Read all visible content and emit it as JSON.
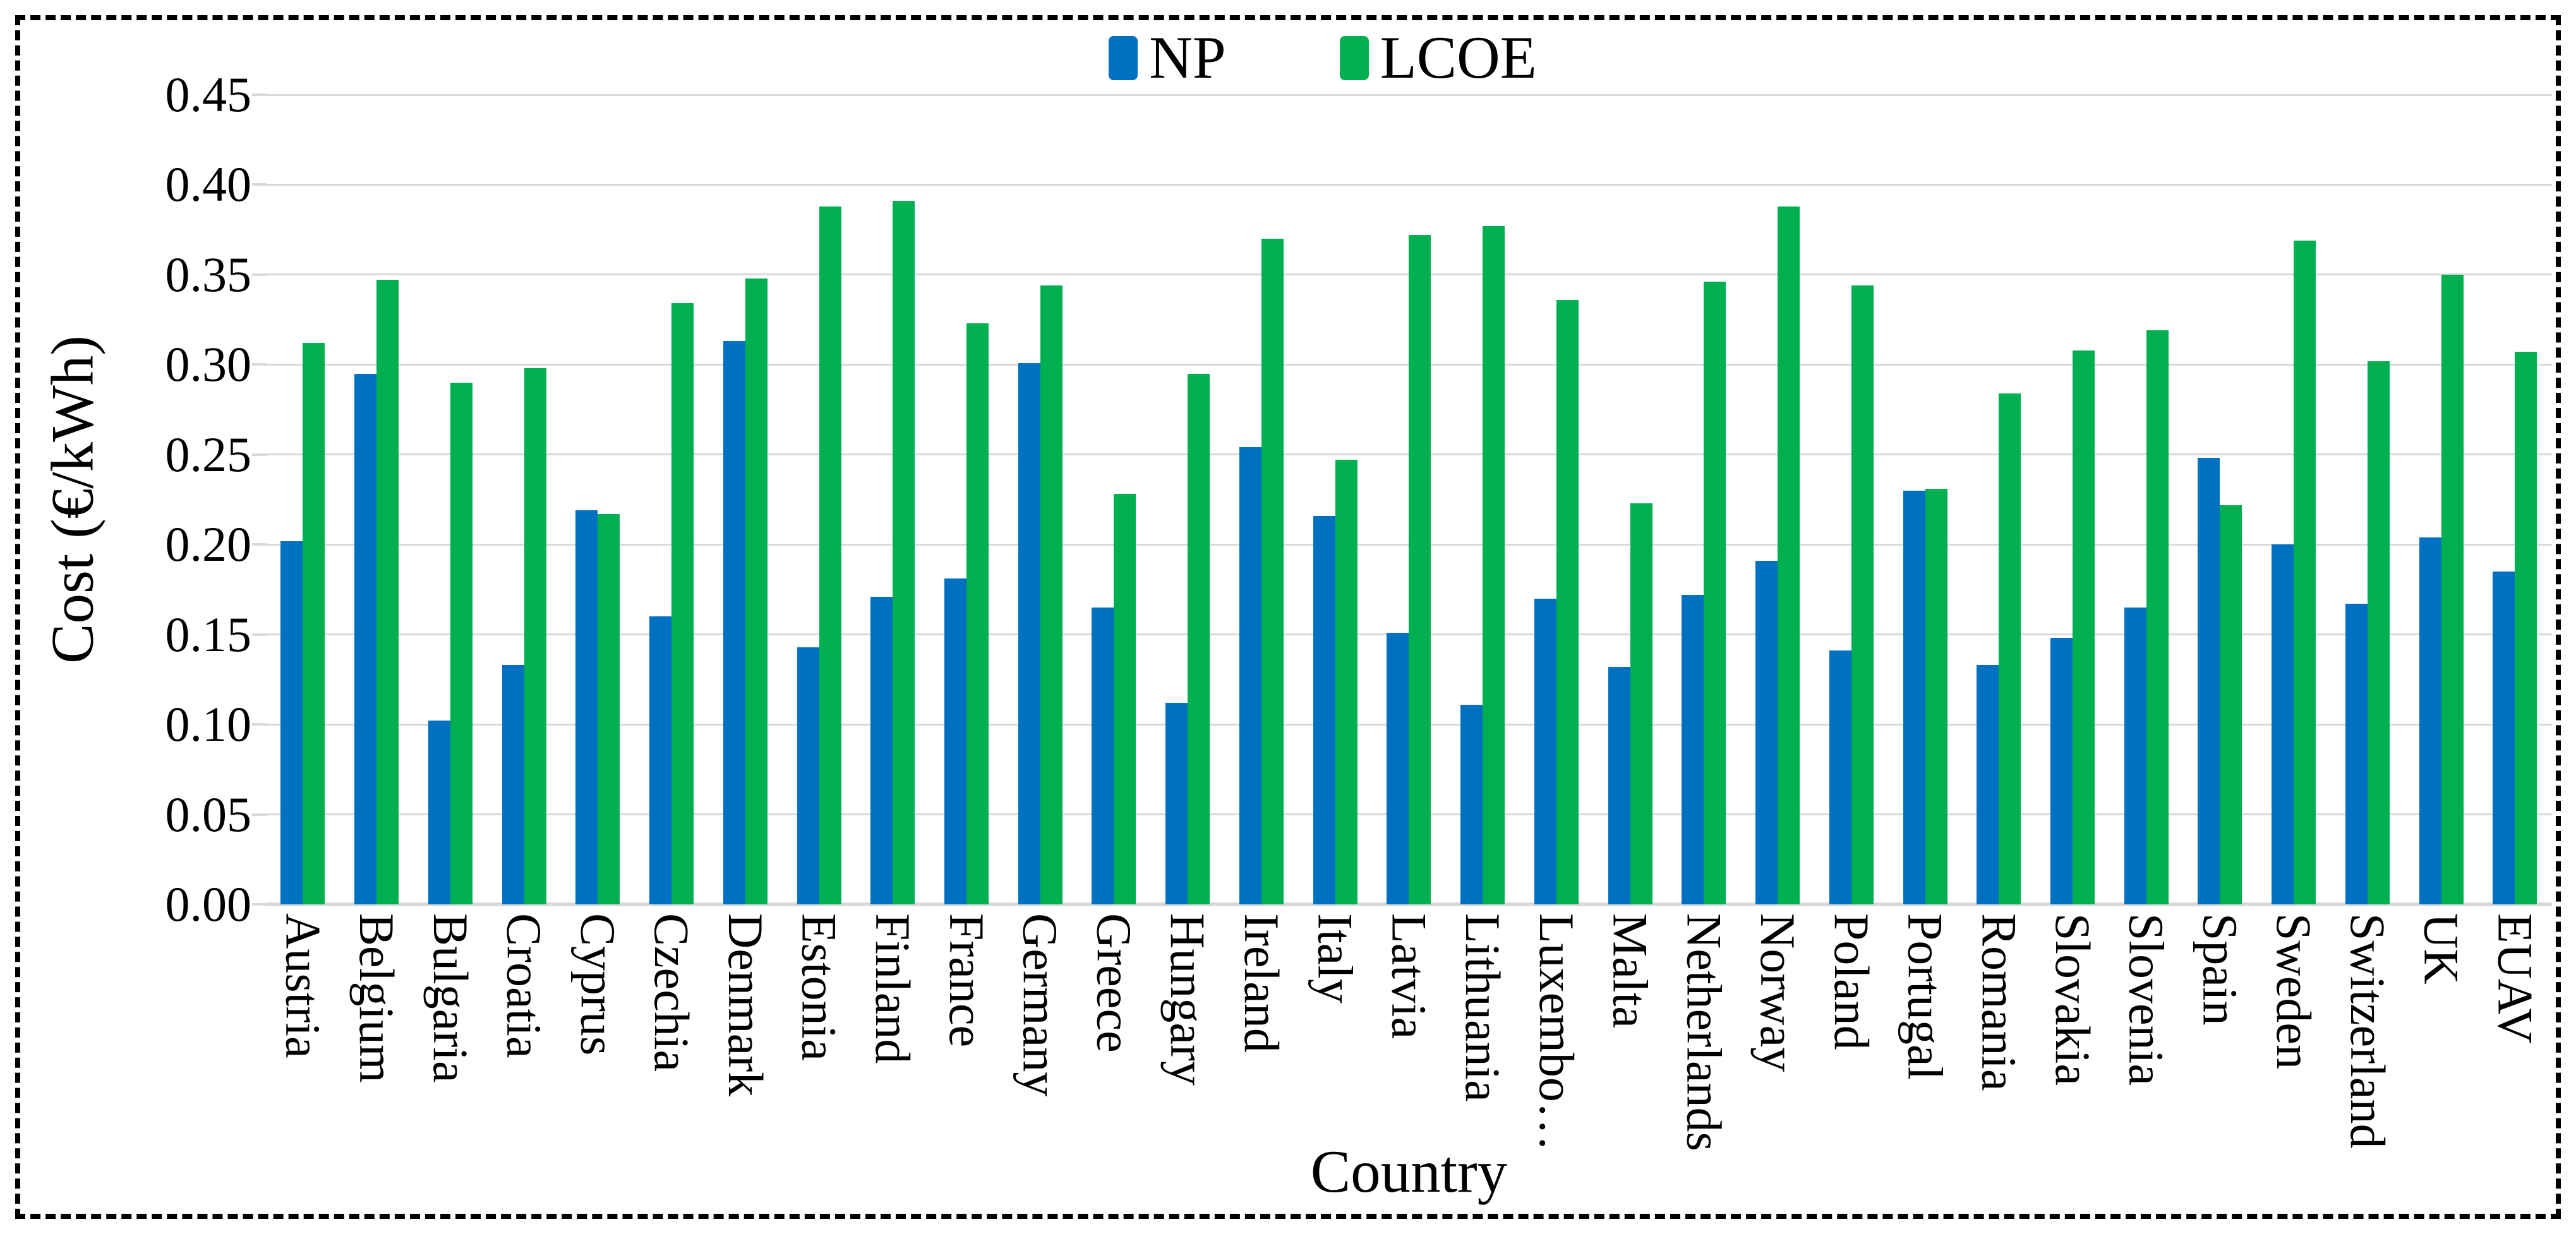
{
  "chart_data": {
    "type": "bar",
    "title": "",
    "xlabel": "Country",
    "ylabel": "Cost (€/kWh)",
    "ylim": [
      0,
      0.45
    ],
    "ytick_step": 0.05,
    "ytick_labels": [
      "0.00",
      "0.05",
      "0.10",
      "0.15",
      "0.20",
      "0.25",
      "0.30",
      "0.35",
      "0.40",
      "0.45"
    ],
    "grid": "horizontal",
    "legend_position": "top-center",
    "categories": [
      "Austria",
      "Belgium",
      "Bulgaria",
      "Croatia",
      "Cyprus",
      "Czechia",
      "Denmark",
      "Estonia",
      "Finland",
      "France",
      "Germany",
      "Greece",
      "Hungary",
      "Ireland",
      "Italy",
      "Latvia",
      "Lithuania",
      "Luxembo…",
      "Malta",
      "Netherlands",
      "Norway",
      "Poland",
      "Portugal",
      "Romania",
      "Slovakia",
      "Slovenia",
      "Spain",
      "Sweden",
      "Switzerland",
      "UK",
      "EUAV"
    ],
    "series": [
      {
        "name": "NP",
        "color": "#0070C0",
        "values": [
          0.202,
          0.295,
          0.102,
          0.133,
          0.219,
          0.16,
          0.313,
          0.143,
          0.171,
          0.181,
          0.301,
          0.165,
          0.112,
          0.254,
          0.216,
          0.151,
          0.111,
          0.17,
          0.132,
          0.172,
          0.191,
          0.141,
          0.23,
          0.133,
          0.148,
          0.165,
          0.248,
          0.2,
          0.167,
          0.204,
          0.185
        ]
      },
      {
        "name": "LCOE",
        "color": "#00B050",
        "values": [
          0.312,
          0.347,
          0.29,
          0.298,
          0.217,
          0.334,
          0.348,
          0.388,
          0.391,
          0.323,
          0.344,
          0.228,
          0.295,
          0.37,
          0.247,
          0.372,
          0.377,
          0.336,
          0.223,
          0.346,
          0.388,
          0.344,
          0.231,
          0.284,
          0.308,
          0.319,
          0.222,
          0.369,
          0.302,
          0.35,
          0.307
        ]
      }
    ]
  },
  "axes": {
    "x_title": "Country",
    "y_title": "Cost (€/kWh)"
  },
  "legend": {
    "np_label": "NP",
    "lcoe_label": "LCOE"
  },
  "colors": {
    "np": "#0070C0",
    "lcoe": "#00B050",
    "gridline": "#D9D9D9",
    "border": "#000000",
    "background": "#FFFFFF"
  }
}
